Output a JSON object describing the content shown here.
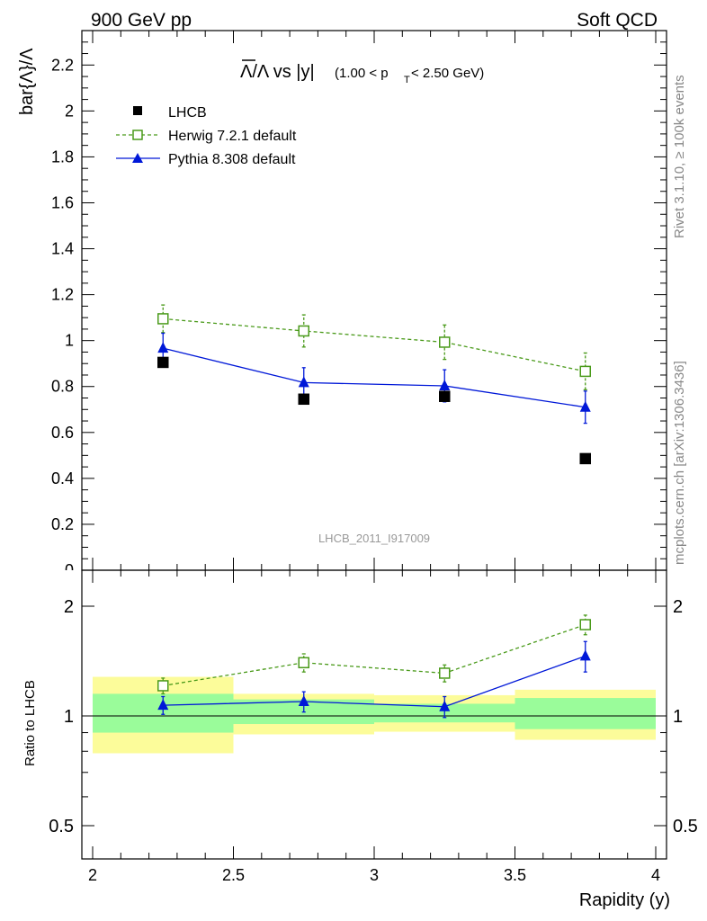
{
  "header": {
    "left": "900 GeV pp",
    "right": "Soft QCD"
  },
  "side": {
    "rivet": "Rivet 3.1.10, ≥ 100k events",
    "mcplots": "mcplots.cern.ch [arXiv:1306.3436]"
  },
  "main": {
    "ylabel": "bar{Λ}/Λ",
    "title_main": "Λ/Λ vs |y|",
    "title_range": "(1.00 < p",
    "title_sub": "T",
    "title_end": " < 2.50 GeV)",
    "watermark": "LHCB_2011_I917009",
    "ylim": [
      0,
      2.35
    ],
    "yticks": [
      "0",
      "0.2",
      "0.4",
      "0.6",
      "0.8",
      "1",
      "1.2",
      "1.4",
      "1.6",
      "1.8",
      "2",
      "2.2"
    ]
  },
  "ratio": {
    "ylabel": "Ratio to LHCB",
    "yticks": [
      "0.5",
      "1",
      "2"
    ],
    "ylim": [
      0.4,
      2.3
    ],
    "scale": "log"
  },
  "xaxis": {
    "label": "Rapidity (y)",
    "xlim": [
      2,
      4
    ],
    "ticks": [
      "2",
      "2.5",
      "3",
      "3.5",
      "4"
    ]
  },
  "legend": {
    "placement": "top-left",
    "items": [
      "LHCB",
      "Herwig 7.2.1 default",
      "Pythia 8.308 default"
    ]
  },
  "colors": {
    "data": "#000000",
    "herwig": "#4a9a1a",
    "pythia": "#0018d8",
    "band_inner": "#9afc9a",
    "band_outer": "#fcfc9a"
  },
  "chart_data": [
    {
      "type": "scatter",
      "panel": "main",
      "x": [
        2.25,
        2.75,
        3.25,
        3.75
      ],
      "xbins": [
        [
          2.0,
          2.5
        ],
        [
          2.5,
          3.0
        ],
        [
          3.0,
          3.5
        ],
        [
          3.5,
          4.0
        ]
      ],
      "series": [
        {
          "name": "LHCB",
          "values": [
            0.905,
            0.745,
            0.757,
            0.486
          ]
        },
        {
          "name": "Herwig 7.2.1 default",
          "values": [
            1.095,
            1.042,
            0.993,
            0.866
          ],
          "err": [
            0.06,
            0.07,
            0.075,
            0.08
          ]
        },
        {
          "name": "Pythia 8.308 default",
          "values": [
            0.967,
            0.817,
            0.803,
            0.71
          ],
          "err": [
            0.065,
            0.065,
            0.07,
            0.07
          ]
        }
      ],
      "ylim": [
        0,
        2.35
      ]
    },
    {
      "type": "scatter",
      "panel": "ratio",
      "x": [
        2.25,
        2.75,
        3.25,
        3.75
      ],
      "series": [
        {
          "name": "Herwig 7.2.1 default",
          "values": [
            1.21,
            1.4,
            1.31,
            1.78
          ],
          "err": [
            0.06,
            0.08,
            0.07,
            0.11
          ]
        },
        {
          "name": "Pythia 8.308 default",
          "values": [
            1.07,
            1.095,
            1.06,
            1.46
          ],
          "err": [
            0.06,
            0.07,
            0.07,
            0.14
          ]
        }
      ],
      "bands": {
        "inner": [
          [
            0.9,
            1.15
          ],
          [
            0.95,
            1.11
          ],
          [
            0.96,
            1.08
          ],
          [
            0.92,
            1.12
          ]
        ],
        "outer": [
          [
            0.79,
            1.28
          ],
          [
            0.89,
            1.15
          ],
          [
            0.905,
            1.14
          ],
          [
            0.86,
            1.18
          ]
        ]
      },
      "ylim": [
        0.4,
        2.3
      ]
    }
  ]
}
